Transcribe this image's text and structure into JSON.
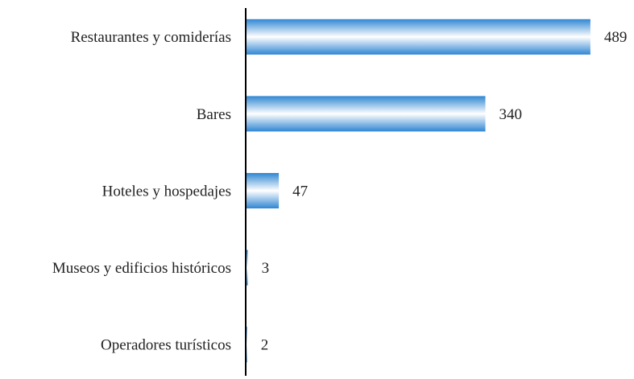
{
  "chart_data": {
    "type": "hbar",
    "categories": [
      "Restaurantes y comiderías",
      "Bares",
      "Hoteles y hospedajes",
      "Museos y edificios históricos",
      "Operadores turísticos"
    ],
    "values": [
      489,
      340,
      47,
      3,
      2
    ],
    "color": "#2f86d2",
    "xlim": [
      0,
      500
    ]
  }
}
